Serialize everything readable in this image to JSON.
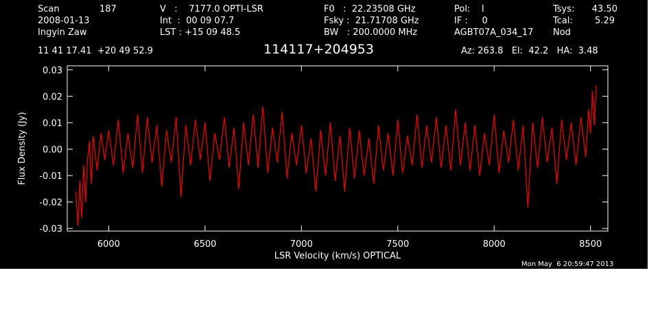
{
  "header": {
    "scan_label": "Scan",
    "scan_value": "187",
    "date": "2008-01-13",
    "observer": "Ingyin Zaw",
    "coords": "11 41 17.41  +20 49 52.9",
    "v_line": "V   :    7177.0 OPTI-LSR",
    "int_line": "Int  :  00 09 07.7",
    "lst_line": "LST : +15 09 48.5",
    "f0_line": "F0   :  22.23508 GHz",
    "fsky_line": "Fsky :  21.71708 GHz",
    "bw_line": "BW   : 200.0000 MHz",
    "pol_line": "Pol:    I",
    "if_line": "IF :     0",
    "project": "AGBT07A_034_17",
    "tsys_label": "Tsys:",
    "tsys_value": "43.50",
    "tcal_label": "Tcal:",
    "tcal_value": "5.29",
    "mode": "Nod",
    "source": "114117+204953",
    "az_el_ha": "Az: 263.8   El:  42.2   HA:  3.48"
  },
  "timestamp": "Mon May  6 20:59:47 2013",
  "colors": {
    "background": "#000000",
    "foreground": "#ffffff",
    "series": "#ff0000"
  },
  "chart_data": {
    "type": "line",
    "xlabel": "LSR Velocity (km/s) OPTICAL",
    "ylabel": "Flux Density (Jy)",
    "xlim": [
      5785,
      8590
    ],
    "ylim": [
      -0.031,
      0.0315
    ],
    "xticks": [
      {
        "value": 6000,
        "label": "6000"
      },
      {
        "value": 6500,
        "label": "6500"
      },
      {
        "value": 7000,
        "label": "7000"
      },
      {
        "value": 7500,
        "label": "7500"
      },
      {
        "value": 8000,
        "label": "8000"
      },
      {
        "value": 8500,
        "label": "8500"
      }
    ],
    "yticks": [
      {
        "value": -0.03,
        "label": "-0.03"
      },
      {
        "value": -0.02,
        "label": "-0.02"
      },
      {
        "value": -0.01,
        "label": "-0.01"
      },
      {
        "value": 0.0,
        "label": "0.00"
      },
      {
        "value": 0.01,
        "label": "0.01"
      },
      {
        "value": 0.02,
        "label": "0.02"
      },
      {
        "value": 0.03,
        "label": "0.03"
      }
    ],
    "grid": false,
    "legend": "none",
    "series": [
      {
        "color": "#ff0000",
        "x": [
          5830,
          5840,
          5850,
          5860,
          5870,
          5880,
          5890,
          5900,
          5910,
          5920,
          5940,
          5960,
          5980,
          6000,
          6025,
          6050,
          6075,
          6100,
          6125,
          6150,
          6175,
          6200,
          6225,
          6250,
          6275,
          6300,
          6325,
          6350,
          6375,
          6400,
          6425,
          6450,
          6475,
          6500,
          6525,
          6550,
          6575,
          6600,
          6625,
          6650,
          6675,
          6700,
          6725,
          6750,
          6775,
          6800,
          6825,
          6850,
          6875,
          6900,
          6925,
          6950,
          6975,
          7000,
          7025,
          7050,
          7075,
          7100,
          7125,
          7150,
          7175,
          7200,
          7225,
          7250,
          7275,
          7300,
          7325,
          7350,
          7375,
          7400,
          7425,
          7450,
          7475,
          7500,
          7525,
          7550,
          7575,
          7600,
          7625,
          7650,
          7675,
          7700,
          7725,
          7750,
          7775,
          7800,
          7825,
          7850,
          7875,
          7900,
          7925,
          7950,
          7975,
          8000,
          8025,
          8050,
          8075,
          8100,
          8125,
          8150,
          8175,
          8200,
          8225,
          8250,
          8275,
          8300,
          8325,
          8350,
          8375,
          8400,
          8425,
          8450,
          8475,
          8490,
          8500,
          8510,
          8520,
          8530
        ],
        "y": [
          -0.016,
          -0.029,
          -0.012,
          -0.026,
          -0.006,
          -0.02,
          -0.004,
          0.003,
          -0.013,
          0.005,
          -0.008,
          0.006,
          -0.004,
          0.007,
          -0.006,
          0.011,
          -0.009,
          0.006,
          -0.007,
          0.013,
          -0.009,
          0.012,
          -0.005,
          0.009,
          -0.014,
          0.007,
          -0.005,
          0.012,
          -0.018,
          0.009,
          -0.006,
          0.011,
          -0.004,
          0.01,
          -0.012,
          0.006,
          -0.004,
          0.012,
          -0.007,
          0.008,
          -0.015,
          0.01,
          -0.006,
          0.013,
          -0.007,
          0.016,
          -0.009,
          0.008,
          -0.005,
          0.014,
          -0.011,
          0.006,
          -0.006,
          0.009,
          -0.009,
          0.004,
          -0.016,
          0.007,
          -0.01,
          0.01,
          -0.012,
          0.005,
          -0.016,
          0.008,
          -0.011,
          0.007,
          -0.01,
          0.004,
          -0.013,
          0.009,
          -0.008,
          0.006,
          -0.01,
          0.011,
          -0.009,
          0.005,
          -0.006,
          0.013,
          -0.007,
          0.009,
          -0.005,
          0.012,
          -0.007,
          0.009,
          -0.008,
          0.015,
          -0.006,
          0.01,
          -0.008,
          0.009,
          -0.01,
          0.006,
          -0.006,
          0.013,
          -0.009,
          0.007,
          -0.005,
          0.011,
          -0.008,
          0.009,
          -0.022,
          0.01,
          -0.007,
          0.012,
          -0.005,
          0.008,
          -0.013,
          0.011,
          -0.004,
          0.01,
          -0.006,
          0.012,
          -0.003,
          0.015,
          0.006,
          0.022,
          0.009,
          0.024
        ]
      }
    ]
  }
}
